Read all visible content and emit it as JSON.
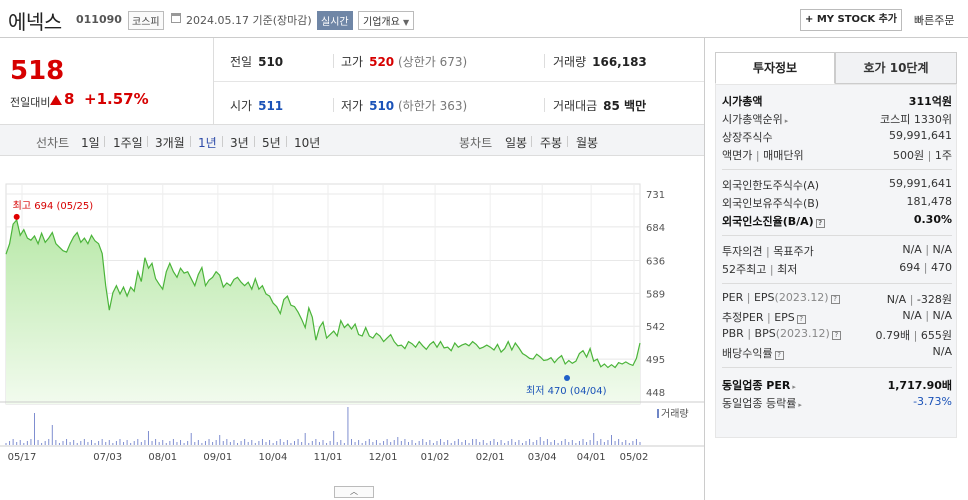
{
  "header": {
    "name": "에넥스",
    "code": "011090",
    "market": "코스피",
    "date": "2024.05.17  기준(장마감)",
    "realtime": "실시간",
    "company_overview": "기업개요",
    "mystock": "+ MY STOCK 추가",
    "quick_order": "빠른주문"
  },
  "price": {
    "current": "518",
    "change_label": "전일대비",
    "change": "8",
    "change_pct": "+1.57%"
  },
  "quote": {
    "prev_label": "전일",
    "prev": "510",
    "high_label": "고가",
    "high": "520",
    "upper_limit": "(상한가 673)",
    "volume_label": "거래량",
    "volume": "166,183",
    "open_label": "시가",
    "open": "511",
    "low_label": "저가",
    "low": "510",
    "lower_limit": "(하한가 363)",
    "amount_label": "거래대금",
    "amount": "85 백만"
  },
  "tabs": {
    "line_label": "선차트",
    "periods": [
      "1일",
      "1주일",
      "3개월",
      "1년",
      "3년",
      "5년",
      "10년"
    ],
    "selected": "1년",
    "candle_label": "봉차트",
    "candles": [
      "일봉",
      "주봉",
      "월봉"
    ]
  },
  "chart_data": {
    "type": "area",
    "y_ticks": [
      "731",
      "684",
      "636",
      "589",
      "542",
      "495",
      "448"
    ],
    "ylim": [
      448,
      731
    ],
    "x_ticks": [
      "05/17",
      "07/03",
      "08/01",
      "09/01",
      "10/04",
      "11/01",
      "12/01",
      "01/02",
      "02/01",
      "03/04",
      "04/01",
      "05/02"
    ],
    "high_annotation": "최고 694 (05/25)",
    "low_annotation": "최저 470 (04/04)",
    "volume_label": "거래량",
    "series": [
      {
        "values": [
          645,
          660,
          688,
          694,
          672,
          680,
          668,
          665,
          671,
          660,
          675,
          662,
          668,
          676,
          660,
          655,
          650,
          648,
          660,
          670,
          676,
          662,
          668,
          660,
          672,
          664,
          660,
          646,
          600,
          565,
          590,
          600,
          588,
          598,
          585,
          598,
          592,
          620,
          606,
          640,
          625,
          632,
          610,
          602,
          595,
          620,
          632,
          620,
          612,
          625,
          618,
          620,
          610,
          600,
          616,
          626,
          600,
          608,
          612,
          620,
          615,
          598,
          604,
          600,
          609,
          612,
          605,
          600,
          605,
          595,
          610,
          595,
          600,
          588,
          585,
          575,
          570,
          560,
          580,
          585,
          572,
          570,
          562,
          552,
          540,
          568,
          555,
          522,
          540,
          548,
          525,
          530,
          535,
          528,
          550,
          540,
          545,
          538,
          545,
          530,
          528,
          540,
          528,
          525,
          532,
          528,
          520,
          525,
          530,
          520,
          514,
          515,
          510,
          520,
          517,
          512,
          520,
          514,
          509,
          516,
          520,
          512,
          520,
          511,
          512,
          507,
          518,
          512,
          515,
          517,
          514,
          520,
          516,
          510,
          512,
          515,
          512,
          508,
          516,
          505,
          510,
          520,
          508,
          518,
          511,
          503,
          500,
          496,
          495,
          502,
          498,
          493,
          494,
          497,
          490,
          496,
          500,
          488,
          493,
          489,
          492,
          503,
          507,
          498,
          510,
          492,
          495,
          484,
          488,
          483,
          487,
          483,
          490,
          488,
          491,
          488,
          486,
          496,
          518
        ]
      }
    ]
  },
  "right_panel": {
    "tabs": [
      "투자정보",
      "호가 10단계"
    ],
    "market_cap_label": "시가총액",
    "market_cap": "311억원",
    "market_cap_rank_label": "시가총액순위",
    "market_cap_rank": "코스피 1330위",
    "shares_label": "상장주식수",
    "shares": "59,991,641",
    "face_label": "액면가",
    "trade_unit_label": "매매단위",
    "face": "500원",
    "trade_unit": "1주",
    "foreign_limit_label": "외국인한도주식수(A)",
    "foreign_limit": "59,991,641",
    "foreign_hold_label": "외국인보유주식수(B)",
    "foreign_hold": "181,478",
    "foreign_ratio_label": "외국인소진율(B/A)",
    "foreign_ratio": "0.30%",
    "opinion_label": "투자의견",
    "target_label": "목표주가",
    "opinion": "N/A",
    "target": "N/A",
    "w52_high_label": "52주최고",
    "w52_low_label": "최저",
    "w52_high": "694",
    "w52_low": "470",
    "per_label": "PER",
    "eps_label": "EPS",
    "eps_year": "(2023.12)",
    "per": "N/A",
    "eps": "-328원",
    "est_per_label": "추정PER",
    "est_eps_label": "EPS",
    "est_per": "N/A",
    "est_eps": "N/A",
    "pbr_label": "PBR",
    "bps_label": "BPS",
    "bps_year": "(2023.12)",
    "pbr": "0.79배",
    "bps": "655원",
    "dividend_label": "배당수익률",
    "dividend": "N/A",
    "sector_per_label": "동일업종 PER",
    "sector_per": "1,717.90배",
    "sector_change_label": "동일업종 등락률",
    "sector_change": "-3.73%"
  }
}
